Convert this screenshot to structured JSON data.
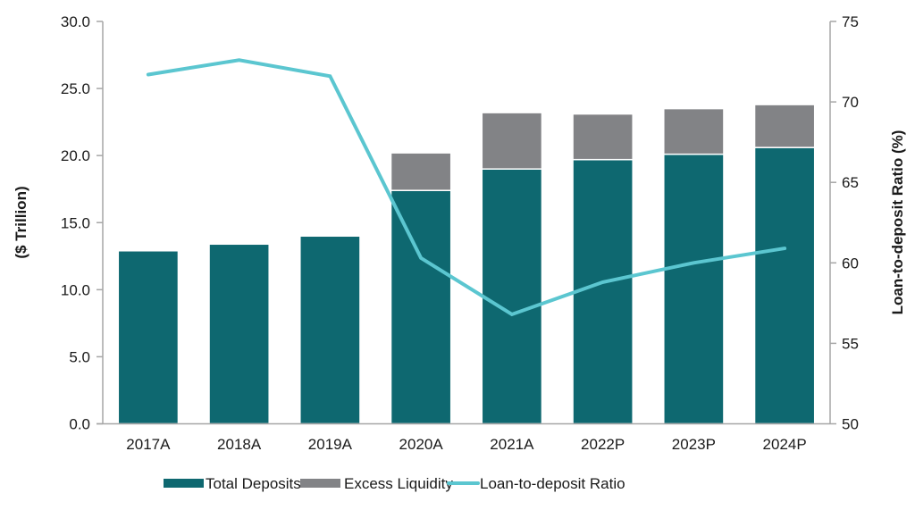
{
  "chart_data": {
    "type": "bar",
    "subtype": "stacked-bar-with-line",
    "title": "",
    "categories": [
      "2017A",
      "2018A",
      "2019A",
      "2020A",
      "2021A",
      "2022P",
      "2023P",
      "2024P"
    ],
    "series": [
      {
        "name": "Total Deposits",
        "type": "bar",
        "axis": "left",
        "color": "#0e6870",
        "values": [
          12.9,
          13.4,
          14.0,
          17.4,
          19.0,
          19.7,
          20.1,
          20.6
        ]
      },
      {
        "name": "Excess Liquidity",
        "type": "bar",
        "axis": "left",
        "color": "#828386",
        "values": [
          0,
          0,
          0,
          2.8,
          4.2,
          3.4,
          3.4,
          3.2
        ]
      },
      {
        "name": "Loan-to-deposit Ratio",
        "type": "line",
        "axis": "right",
        "color": "#5bc6d0",
        "values": [
          71.7,
          72.6,
          71.6,
          60.3,
          56.8,
          58.8,
          60.0,
          60.9
        ]
      }
    ],
    "ylabel": "($ Trillion)",
    "ylim": [
      0,
      30
    ],
    "yticks": [
      "0.0",
      "5.0",
      "10.0",
      "15.0",
      "20.0",
      "25.0",
      "30.0"
    ],
    "y2label": "Loan-to-deposit Ratio (%)",
    "y2lim": [
      50,
      75
    ],
    "y2ticks": [
      "50",
      "55",
      "60",
      "65",
      "70",
      "75"
    ],
    "grid": false,
    "legend_position": "bottom"
  }
}
